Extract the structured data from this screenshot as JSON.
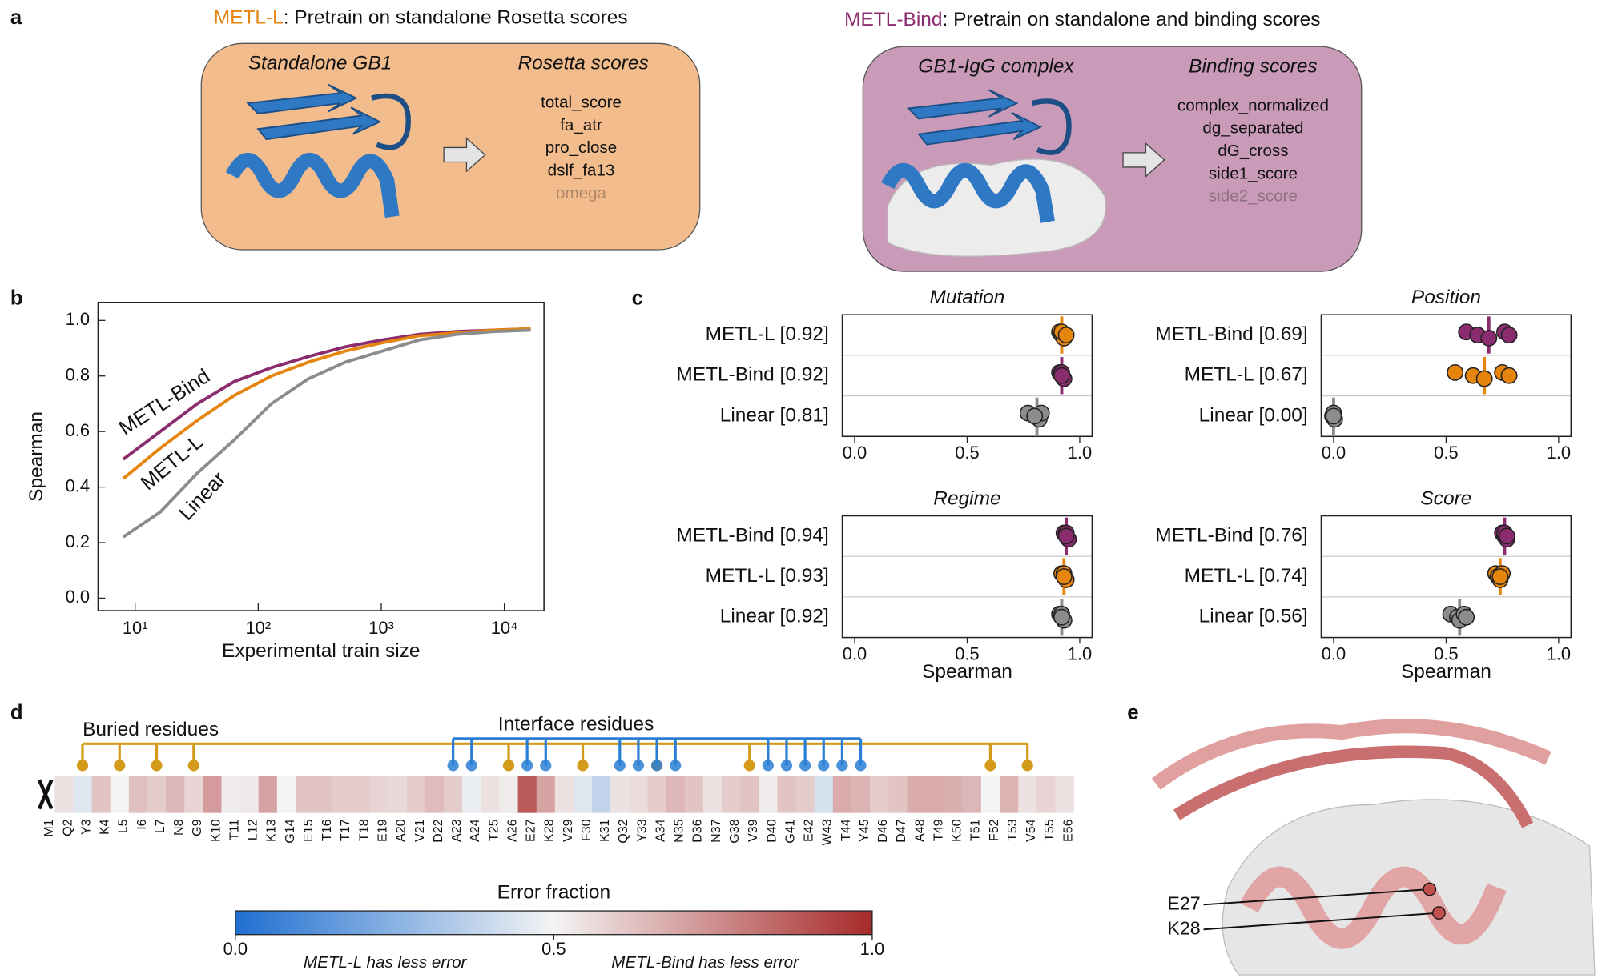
{
  "panel_labels": [
    "a",
    "b",
    "c",
    "d",
    "e"
  ],
  "panel_a": {
    "left": {
      "model": "METL-L",
      "model_color": "#e6850e",
      "rest": ": Pretrain on standalone Rosetta scores",
      "structure": "Standalone GB1",
      "scores_title": "Rosetta scores",
      "scores": [
        "total_score",
        "fa_atr",
        "pro_close",
        "dslf_fa13",
        "omega"
      ]
    },
    "right": {
      "model": "METL-Bind",
      "model_color": "#8b2c6e",
      "rest": ": Pretrain on standalone and binding scores",
      "structure": "GB1-IgG complex",
      "scores_title": "Binding scores",
      "scores": [
        "complex_normalized",
        "dg_separated",
        "dG_cross",
        "side1_score",
        "side2_score"
      ]
    }
  },
  "chart_data": [
    {
      "type": "line",
      "xlabel": "Experimental train size",
      "ylabel": "Spearman",
      "log_x": true,
      "xlim": [
        5,
        21000
      ],
      "xticks": [
        {
          "value": 10,
          "label": "10¹"
        },
        {
          "value": 100,
          "label": "10²"
        },
        {
          "value": 1000,
          "label": "10³"
        },
        {
          "value": 10000,
          "label": "10⁴"
        }
      ],
      "ylim": [
        -0.045,
        1.065
      ],
      "yticks": [
        {
          "value": 0,
          "label": "0.0"
        },
        0.2,
        0.4,
        0.6,
        0.8,
        {
          "value": 1,
          "label": "1.0"
        }
      ],
      "x": [
        8,
        16,
        32,
        64,
        128,
        256,
        512,
        1024,
        2048,
        4096,
        8192,
        16384
      ],
      "series": [
        {
          "name": "METL-Bind",
          "color": "#8b2c6e",
          "values": [
            0.5,
            0.6,
            0.7,
            0.78,
            0.83,
            0.87,
            0.905,
            0.93,
            0.95,
            0.96,
            0.965,
            0.97
          ]
        },
        {
          "name": "METL-L",
          "color": "#e6850e",
          "values": [
            0.43,
            0.54,
            0.64,
            0.73,
            0.8,
            0.85,
            0.89,
            0.92,
            0.945,
            0.955,
            0.965,
            0.97
          ]
        },
        {
          "name": "Linear",
          "color": "#8c8c8c",
          "values": [
            0.22,
            0.31,
            0.45,
            0.57,
            0.7,
            0.79,
            0.85,
            0.89,
            0.93,
            0.95,
            0.96,
            0.965
          ]
        }
      ]
    },
    {
      "type": "strip",
      "title": "Mutation",
      "xlim": [
        -0.055,
        1.055
      ],
      "xticks": [
        {
          "value": 0,
          "label": "0.0"
        },
        0.5,
        {
          "value": 1,
          "label": "1.0"
        }
      ],
      "rows": [
        {
          "label": "METL-L [0.92]",
          "color": "#e6850e",
          "mean": 0.92,
          "points": [
            0.91,
            0.92,
            0.93,
            0.92,
            0.94
          ]
        },
        {
          "label": "METL-Bind [0.92]",
          "color": "#8b2c6e",
          "mean": 0.92,
          "points": [
            0.91,
            0.92,
            0.93,
            0.92,
            0.92
          ]
        },
        {
          "label": "Linear [0.81]",
          "color": "#8c8c8c",
          "mean": 0.81,
          "points": [
            0.77,
            0.8,
            0.82,
            0.83,
            0.8
          ]
        }
      ]
    },
    {
      "type": "strip",
      "title": "Position",
      "xlim": [
        -0.055,
        1.055
      ],
      "xticks": [
        {
          "value": 0,
          "label": "0.0"
        },
        0.5,
        {
          "value": 1,
          "label": "1.0"
        }
      ],
      "rows": [
        {
          "label": "METL-Bind [0.69]",
          "color": "#8b2c6e",
          "mean": 0.69,
          "points": [
            0.59,
            0.64,
            0.69,
            0.76,
            0.78
          ]
        },
        {
          "label": "METL-L [0.67]",
          "color": "#e6850e",
          "mean": 0.67,
          "points": [
            0.54,
            0.62,
            0.67,
            0.75,
            0.78
          ]
        },
        {
          "label": "Linear [0.00]",
          "color": "#8c8c8c",
          "mean": 0,
          "points": [
            0,
            -0.005,
            0.005,
            0,
            0
          ]
        }
      ]
    },
    {
      "type": "strip",
      "title": "Regime",
      "xlabel": "Spearman",
      "xlim": [
        -0.055,
        1.055
      ],
      "xticks": [
        {
          "value": 0,
          "label": "0.0"
        },
        0.5,
        {
          "value": 1,
          "label": "1.0"
        }
      ],
      "rows": [
        {
          "label": "METL-Bind [0.94]",
          "color": "#8b2c6e",
          "mean": 0.94,
          "points": [
            0.93,
            0.94,
            0.95,
            0.94,
            0.94
          ]
        },
        {
          "label": "METL-L [0.93]",
          "color": "#e6850e",
          "mean": 0.93,
          "points": [
            0.92,
            0.93,
            0.94,
            0.93,
            0.93
          ]
        },
        {
          "label": "Linear [0.92]",
          "color": "#8c8c8c",
          "mean": 0.92,
          "points": [
            0.91,
            0.92,
            0.93,
            0.92,
            0.92
          ]
        }
      ]
    },
    {
      "type": "strip",
      "title": "Score",
      "xlabel": "Spearman",
      "xlim": [
        -0.055,
        1.055
      ],
      "xticks": [
        {
          "value": 0,
          "label": "0.0"
        },
        0.5,
        {
          "value": 1,
          "label": "1.0"
        }
      ],
      "rows": [
        {
          "label": "METL-Bind [0.76]",
          "color": "#8b2c6e",
          "mean": 0.76,
          "points": [
            0.75,
            0.76,
            0.77,
            0.76,
            0.77
          ]
        },
        {
          "label": "METL-L [0.74]",
          "color": "#e6850e",
          "mean": 0.74,
          "points": [
            0.72,
            0.73,
            0.74,
            0.75,
            0.74
          ]
        },
        {
          "label": "Linear [0.56]",
          "color": "#8c8c8c",
          "mean": 0.56,
          "points": [
            0.52,
            0.55,
            0.56,
            0.58,
            0.59
          ]
        }
      ]
    },
    {
      "type": "heatmap",
      "categories": [
        "M1",
        "Q2",
        "Y3",
        "K4",
        "L5",
        "I6",
        "L7",
        "N8",
        "G9",
        "K10",
        "T11",
        "L12",
        "K13",
        "G14",
        "E15",
        "T16",
        "T17",
        "T18",
        "E19",
        "A20",
        "V21",
        "D22",
        "A23",
        "A24",
        "T25",
        "A26",
        "E27",
        "K28",
        "V29",
        "F30",
        "K31",
        "Q32",
        "Y33",
        "A34",
        "N35",
        "D36",
        "N37",
        "G38",
        "V39",
        "D40",
        "G41",
        "E42",
        "W43",
        "T44",
        "Y45",
        "D46",
        "D47",
        "A48",
        "T49",
        "K50",
        "T51",
        "F52",
        "T53",
        "V54",
        "T55",
        "E56"
      ],
      "values": [
        null,
        0.55,
        0.45,
        0.62,
        0.5,
        0.63,
        0.6,
        0.65,
        0.58,
        0.72,
        0.52,
        0.53,
        0.7,
        0.5,
        0.62,
        0.62,
        0.6,
        0.6,
        0.58,
        0.57,
        0.6,
        0.64,
        0.6,
        0.48,
        0.55,
        0.52,
        0.88,
        0.7,
        0.55,
        0.45,
        0.38,
        0.55,
        0.56,
        0.6,
        0.65,
        0.62,
        0.55,
        0.6,
        0.62,
        0.52,
        0.62,
        0.6,
        0.43,
        0.68,
        0.66,
        0.6,
        0.62,
        0.68,
        0.68,
        0.67,
        0.65,
        0.5,
        0.66,
        0.55,
        0.58,
        0.55
      ],
      "colormap": [
        "#1f6fd1",
        "#f4f4f4",
        "#a82a2a"
      ],
      "clim": [
        0,
        1
      ],
      "colorbar": {
        "title": "Error fraction",
        "ticks": [
          {
            "value": 0,
            "label": "0.0"
          },
          0.5,
          {
            "value": 1,
            "label": "1.0"
          }
        ],
        "notes": [
          "METL-L has less error",
          "METL-Bind has less error"
        ]
      },
      "groups": [
        {
          "name": "Buried residues",
          "color": "#d49a1a",
          "members": [
            "Y3",
            "L5",
            "L7",
            "G9",
            "A26",
            "F30",
            "A34",
            "V39",
            "F52",
            "V54"
          ]
        },
        {
          "name": "Interface residues",
          "color": "#2a7fd4",
          "members": [
            "A23",
            "A24",
            "E27",
            "K28",
            "Q32",
            "Y33",
            "A34",
            "N35",
            "D40",
            "G41",
            "E42",
            "W43",
            "T44",
            "Y45"
          ]
        }
      ]
    }
  ],
  "panel_e": {
    "labels": [
      "E27",
      "K28"
    ]
  }
}
